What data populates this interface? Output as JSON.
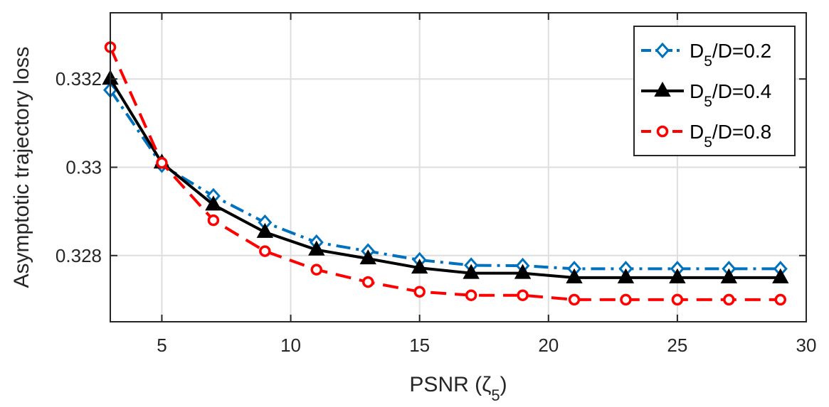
{
  "chart_data": {
    "type": "line",
    "xlabel": "PSNR (ζ5)",
    "ylabel": "Asymptotic trajectory loss",
    "xlim": [
      3,
      30
    ],
    "ylim": [
      0.3265,
      0.3335
    ],
    "x_ticks": [
      5,
      10,
      15,
      20,
      25,
      30
    ],
    "y_ticks": [
      0.328,
      0.33,
      0.332
    ],
    "y_tick_labels": [
      "0.328",
      "0.33",
      "0.332"
    ],
    "grid": true,
    "legend_position": "top-right",
    "x": [
      3,
      5,
      7,
      9,
      11,
      13,
      15,
      17,
      19,
      21,
      23,
      25,
      27,
      29
    ],
    "series": [
      {
        "name": "D5/D=0.2",
        "color": "#0072BD",
        "line_style": "dash-dot",
        "marker": "diamond",
        "values": [
          0.33175,
          0.33005,
          0.32935,
          0.32875,
          0.3283,
          0.3281,
          0.3279,
          0.32778,
          0.32777,
          0.3277,
          0.3277,
          0.3277,
          0.3277,
          0.3277
        ]
      },
      {
        "name": "D5/D=0.4",
        "color": "#000000",
        "line_style": "solid",
        "marker": "triangle",
        "values": [
          0.332,
          0.3301,
          0.32915,
          0.32853,
          0.32813,
          0.32793,
          0.32772,
          0.3276,
          0.3276,
          0.3275,
          0.3275,
          0.3275,
          0.3275,
          0.3275
        ]
      },
      {
        "name": "D5/D=0.8",
        "color": "#FF0000",
        "line_style": "dashed",
        "marker": "circle",
        "values": [
          0.33272,
          0.3301,
          0.3288,
          0.3281,
          0.32768,
          0.3274,
          0.32718,
          0.3271,
          0.3271,
          0.327,
          0.327,
          0.327,
          0.327,
          0.327
        ]
      }
    ]
  }
}
